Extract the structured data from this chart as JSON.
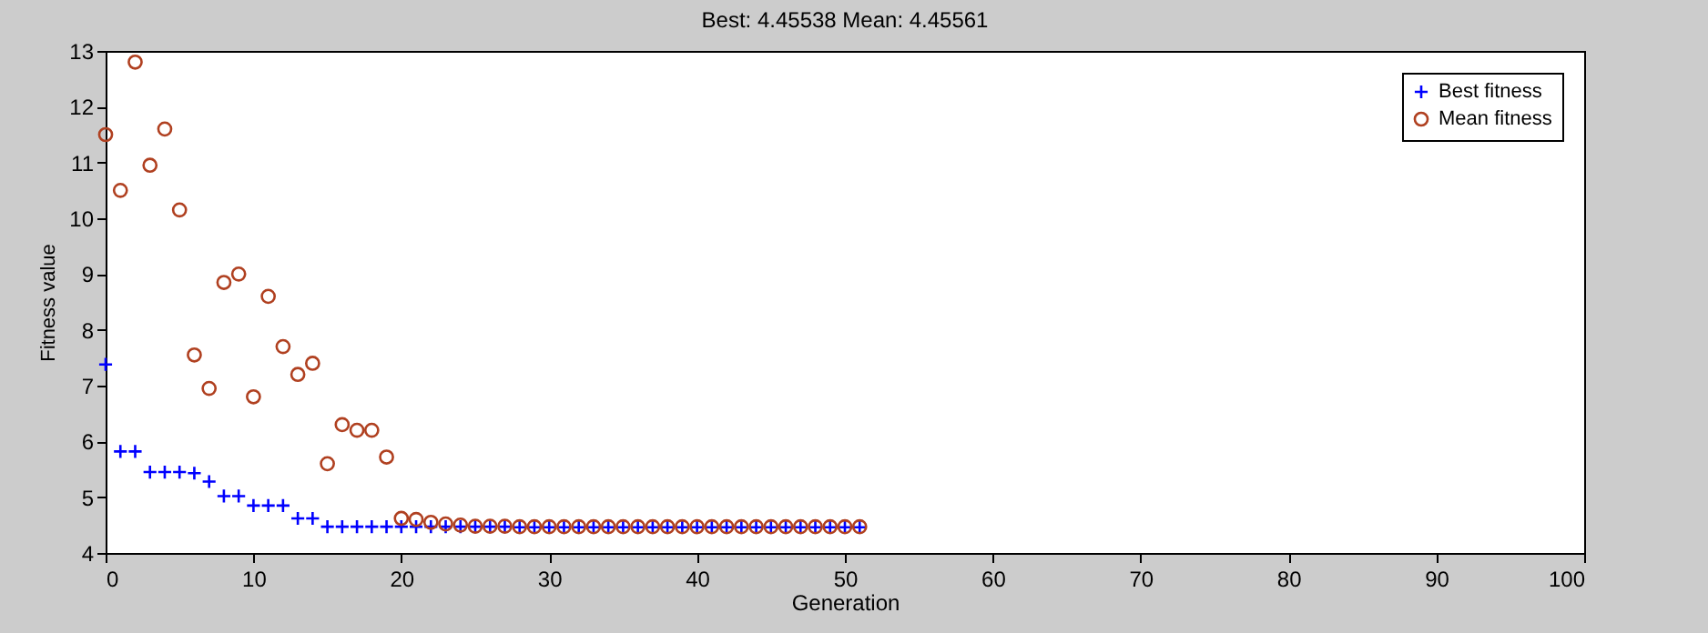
{
  "chart_data": {
    "type": "scatter",
    "title": "Best: 4.45538 Mean: 4.45561",
    "xlabel": "Generation",
    "ylabel": "Fitness value",
    "x": [
      0,
      1,
      2,
      3,
      4,
      5,
      6,
      7,
      8,
      9,
      10,
      11,
      12,
      13,
      14,
      15,
      16,
      17,
      18,
      19,
      20,
      21,
      22,
      23,
      24,
      25,
      26,
      27,
      28,
      29,
      30,
      31,
      32,
      33,
      34,
      35,
      36,
      37,
      38,
      39,
      40,
      41,
      42,
      43,
      44,
      45,
      46,
      47,
      48,
      49,
      50,
      51
    ],
    "series": [
      {
        "name": "Best fitness",
        "color": "#0000ff",
        "marker": "cross",
        "values": [
          7.38,
          5.82,
          5.82,
          5.45,
          5.45,
          5.45,
          5.43,
          5.28,
          5.02,
          5.02,
          4.85,
          4.85,
          4.85,
          4.62,
          4.62,
          4.47,
          4.47,
          4.47,
          4.47,
          4.47,
          4.47,
          4.47,
          4.47,
          4.47,
          4.47,
          4.47,
          4.47,
          4.47,
          4.46,
          4.46,
          4.46,
          4.46,
          4.46,
          4.46,
          4.46,
          4.46,
          4.46,
          4.46,
          4.46,
          4.46,
          4.46,
          4.46,
          4.46,
          4.46,
          4.46,
          4.46,
          4.46,
          4.46,
          4.46,
          4.46,
          4.46,
          4.46
        ]
      },
      {
        "name": "Mean fitness",
        "color": "#b04020",
        "marker": "circle",
        "values": [
          11.5,
          10.5,
          12.8,
          10.95,
          11.6,
          10.15,
          7.55,
          6.95,
          8.85,
          9.0,
          6.8,
          8.6,
          7.7,
          7.2,
          7.4,
          5.6,
          6.3,
          6.2,
          6.2,
          5.72,
          4.62,
          4.6,
          4.55,
          4.52,
          4.5,
          4.48,
          4.48,
          4.48,
          4.47,
          4.47,
          4.47,
          4.47,
          4.47,
          4.47,
          4.47,
          4.47,
          4.47,
          4.47,
          4.47,
          4.47,
          4.47,
          4.47,
          4.47,
          4.47,
          4.47,
          4.47,
          4.47,
          4.47,
          4.47,
          4.47,
          4.47,
          4.47
        ]
      }
    ],
    "xlim": [
      0,
      100
    ],
    "xticks": [
      0,
      10,
      20,
      30,
      40,
      50,
      60,
      70,
      80,
      90,
      100
    ],
    "ylim": [
      4,
      13
    ],
    "yticks": [
      4,
      5,
      6,
      7,
      8,
      9,
      10,
      11,
      12,
      13
    ],
    "legend": "top right",
    "grid": false
  }
}
